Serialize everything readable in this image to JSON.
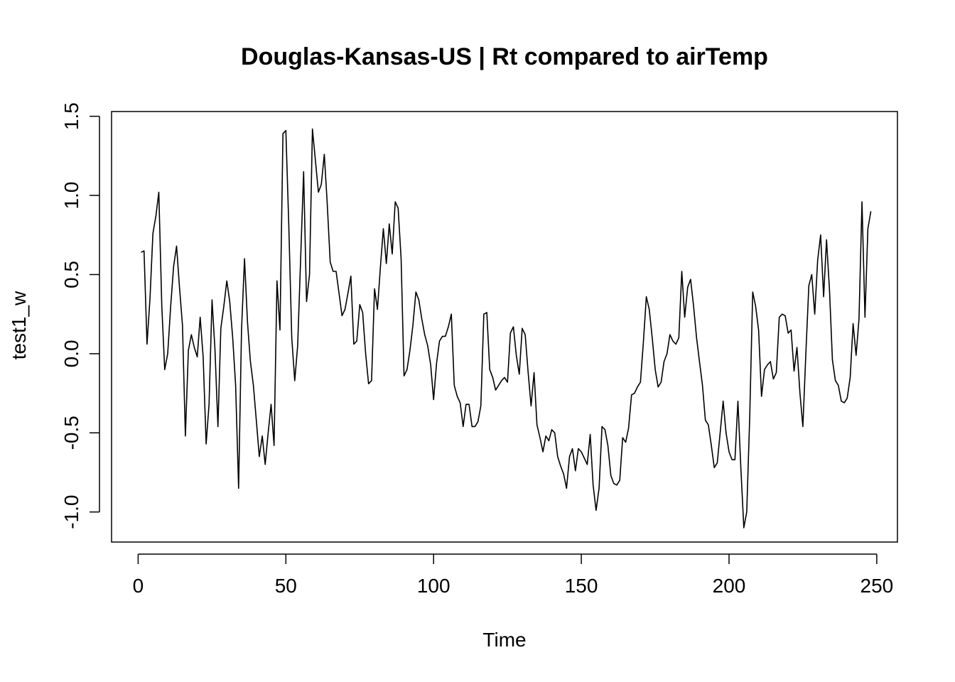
{
  "chart_data": {
    "type": "line",
    "title": "Douglas-Kansas-US | Rt compared to airTemp",
    "xlabel": "Time",
    "ylabel": "test1_w",
    "xlim": [
      -9,
      257
    ],
    "ylim": [
      -1.19,
      1.53
    ],
    "xticks": [
      0,
      50,
      100,
      150,
      200,
      250
    ],
    "yticks": [
      -1.0,
      -0.5,
      0.0,
      0.5,
      1.0,
      1.5
    ],
    "xtick_labels": [
      "0",
      "50",
      "100",
      "150",
      "200",
      "250"
    ],
    "ytick_labels": [
      "-1.0",
      "-0.5",
      "0.0",
      "0.5",
      "1.0",
      "1.5"
    ],
    "grid": false,
    "line_color": "#000000",
    "series": [
      {
        "x": [
          1,
          2,
          3,
          4,
          5,
          6,
          7,
          8,
          9,
          10,
          11,
          12,
          13,
          14,
          15,
          16,
          17,
          18,
          19,
          20,
          21,
          22,
          23,
          24,
          25,
          26,
          27,
          28,
          29,
          30,
          31,
          32,
          33,
          34,
          35,
          36,
          37,
          38,
          39,
          40,
          41,
          42,
          43,
          44,
          45,
          46,
          47,
          48,
          49,
          50,
          51,
          52,
          53,
          54,
          55,
          56,
          57,
          58,
          59,
          60,
          61,
          62,
          63,
          64,
          65,
          66,
          67,
          68,
          69,
          70,
          71,
          72,
          73,
          74,
          75,
          76,
          77,
          78,
          79,
          80,
          81,
          82,
          83,
          84,
          85,
          86,
          87,
          88,
          89,
          90,
          91,
          92,
          93,
          94,
          95,
          96,
          97,
          98,
          99,
          100,
          101,
          102,
          103,
          104,
          105,
          106,
          107,
          108,
          109,
          110,
          111,
          112,
          113,
          114,
          115,
          116,
          117,
          118,
          119,
          120,
          121,
          122,
          123,
          124,
          125,
          126,
          127,
          128,
          129,
          130,
          131,
          132,
          133,
          134,
          135,
          136,
          137,
          138,
          139,
          140,
          141,
          142,
          143,
          144,
          145,
          146,
          147,
          148,
          149,
          150,
          151,
          152,
          153,
          154,
          155,
          156,
          157,
          158,
          159,
          160,
          161,
          162,
          163,
          164,
          165,
          166,
          167,
          168,
          169,
          170,
          171,
          172,
          173,
          174,
          175,
          176,
          177,
          178,
          179,
          180,
          181,
          182,
          183,
          184,
          185,
          186,
          187,
          188,
          189,
          190,
          191,
          192,
          193,
          194,
          195,
          196,
          197,
          198,
          199,
          200,
          201,
          202,
          203,
          204,
          205,
          206,
          207,
          208,
          209,
          210,
          211,
          212,
          213,
          214,
          215,
          216,
          217,
          218,
          219,
          220,
          221,
          222,
          223,
          224,
          225,
          226,
          227,
          228,
          229,
          230,
          231,
          232,
          233,
          234,
          235,
          236,
          237,
          238,
          239,
          240,
          241,
          242,
          243,
          244,
          245,
          246,
          247,
          248
        ],
        "values": [
          0.64,
          0.65,
          0.06,
          0.35,
          0.76,
          0.87,
          1.02,
          0.3,
          -0.1,
          0.0,
          0.3,
          0.55,
          0.68,
          0.42,
          0.18,
          -0.52,
          0.02,
          0.12,
          0.04,
          -0.02,
          0.23,
          -0.02,
          -0.57,
          -0.32,
          0.34,
          0.03,
          -0.46,
          0.16,
          0.3,
          0.46,
          0.33,
          0.1,
          -0.2,
          -0.85,
          0.15,
          0.6,
          0.2,
          -0.05,
          -0.2,
          -0.42,
          -0.65,
          -0.52,
          -0.7,
          -0.5,
          -0.32,
          -0.58,
          0.46,
          0.15,
          1.39,
          1.41,
          0.8,
          0.1,
          -0.17,
          0.05,
          0.6,
          1.15,
          0.33,
          0.5,
          1.42,
          1.22,
          1.02,
          1.07,
          1.26,
          0.95,
          0.58,
          0.52,
          0.52,
          0.38,
          0.24,
          0.28,
          0.38,
          0.49,
          0.06,
          0.08,
          0.31,
          0.26,
          0.0,
          -0.19,
          -0.17,
          0.41,
          0.28,
          0.55,
          0.79,
          0.57,
          0.82,
          0.63,
          0.96,
          0.92,
          0.6,
          -0.14,
          -0.1,
          0.02,
          0.18,
          0.39,
          0.34,
          0.22,
          0.12,
          0.05,
          -0.07,
          -0.29,
          -0.06,
          0.08,
          0.11,
          0.11,
          0.17,
          0.25,
          -0.2,
          -0.27,
          -0.31,
          -0.46,
          -0.32,
          -0.32,
          -0.46,
          -0.46,
          -0.43,
          -0.33,
          0.25,
          0.26,
          -0.1,
          -0.15,
          -0.23,
          -0.2,
          -0.17,
          -0.15,
          -0.18,
          0.13,
          0.17,
          -0.01,
          -0.13,
          0.16,
          0.12,
          -0.12,
          -0.33,
          -0.12,
          -0.45,
          -0.53,
          -0.62,
          -0.52,
          -0.55,
          -0.48,
          -0.5,
          -0.65,
          -0.71,
          -0.76,
          -0.85,
          -0.65,
          -0.6,
          -0.74,
          -0.6,
          -0.62,
          -0.66,
          -0.7,
          -0.51,
          -0.83,
          -0.99,
          -0.85,
          -0.46,
          -0.48,
          -0.58,
          -0.77,
          -0.82,
          -0.83,
          -0.8,
          -0.53,
          -0.56,
          -0.47,
          -0.26,
          -0.25,
          -0.21,
          -0.18,
          0.07,
          0.36,
          0.28,
          0.1,
          -0.1,
          -0.21,
          -0.18,
          -0.05,
          0.0,
          0.12,
          0.08,
          0.06,
          0.1,
          0.52,
          0.23,
          0.42,
          0.47,
          0.3,
          0.1,
          -0.05,
          -0.2,
          -0.42,
          -0.45,
          -0.58,
          -0.72,
          -0.69,
          -0.5,
          -0.3,
          -0.5,
          -0.62,
          -0.67,
          -0.67,
          -0.3,
          -0.72,
          -1.1,
          -1.0,
          -0.4,
          0.39,
          0.3,
          0.15,
          -0.27,
          -0.1,
          -0.07,
          -0.05,
          -0.16,
          -0.12,
          0.23,
          0.25,
          0.24,
          0.13,
          0.15,
          -0.11,
          0.04,
          -0.25,
          -0.46,
          0.0,
          0.43,
          0.5,
          0.25,
          0.59,
          0.75,
          0.36,
          0.72,
          0.4,
          -0.04,
          -0.17,
          -0.2,
          -0.3,
          -0.31,
          -0.28,
          -0.15,
          0.19,
          -0.01,
          0.22,
          0.96,
          0.23,
          0.79,
          0.9
        ]
      }
    ]
  }
}
